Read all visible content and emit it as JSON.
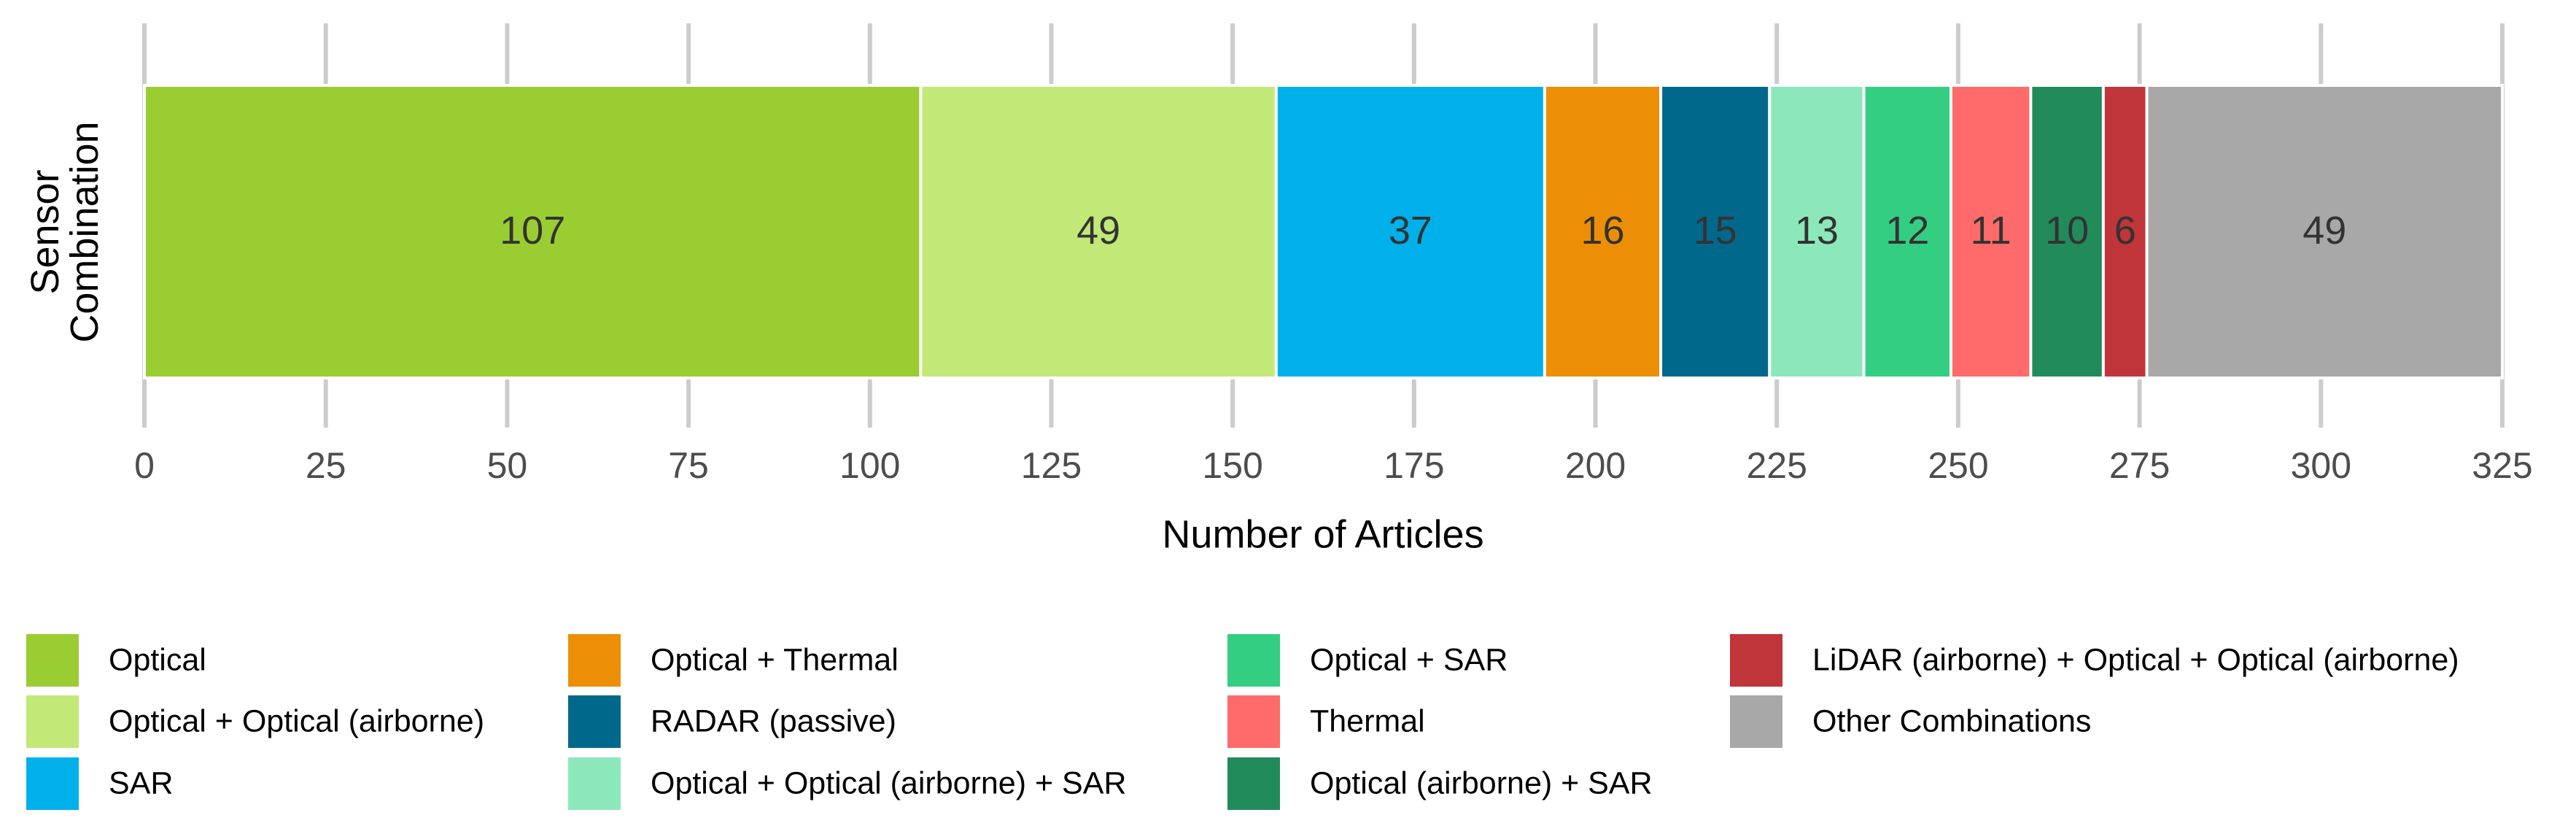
{
  "chart_data": {
    "type": "stacked-bar",
    "orientation": "horizontal",
    "x_label": "Number of Articles",
    "y_label": "Sensor Combination",
    "xlim": [
      0,
      325
    ],
    "xticks": [
      0,
      25,
      50,
      75,
      100,
      125,
      150,
      175,
      200,
      225,
      250,
      275,
      300,
      325
    ],
    "grid": true,
    "legend": "bottom",
    "series": [
      {
        "name": "Optical",
        "color": "#9acd32",
        "values": [
          107
        ]
      },
      {
        "name": "Optical + Optical (airborne)",
        "color": "#c2e878",
        "values": [
          49
        ]
      },
      {
        "name": "SAR",
        "color": "#00b0eb",
        "values": [
          37
        ]
      },
      {
        "name": "Optical + Thermal",
        "color": "#ec8f06",
        "values": [
          16
        ]
      },
      {
        "name": "RADAR (passive)",
        "color": "#00688b",
        "values": [
          15
        ]
      },
      {
        "name": "Optical + Optical (airborne) + SAR",
        "color": "#8ce8ba",
        "values": [
          13
        ]
      },
      {
        "name": "Optical + SAR",
        "color": "#34ce82",
        "values": [
          12
        ]
      },
      {
        "name": "Thermal",
        "color": "#ff6a6a",
        "values": [
          11
        ]
      },
      {
        "name": "Optical (airborne) + SAR",
        "color": "#228b5b",
        "values": [
          10
        ]
      },
      {
        "name": "LiDAR (airborne) + Optical + Optical (airborne)",
        "color": "#c0353a",
        "values": [
          6
        ]
      },
      {
        "name": "Other Combinations",
        "color": "#a8a8a8",
        "values": [
          49
        ]
      }
    ]
  }
}
